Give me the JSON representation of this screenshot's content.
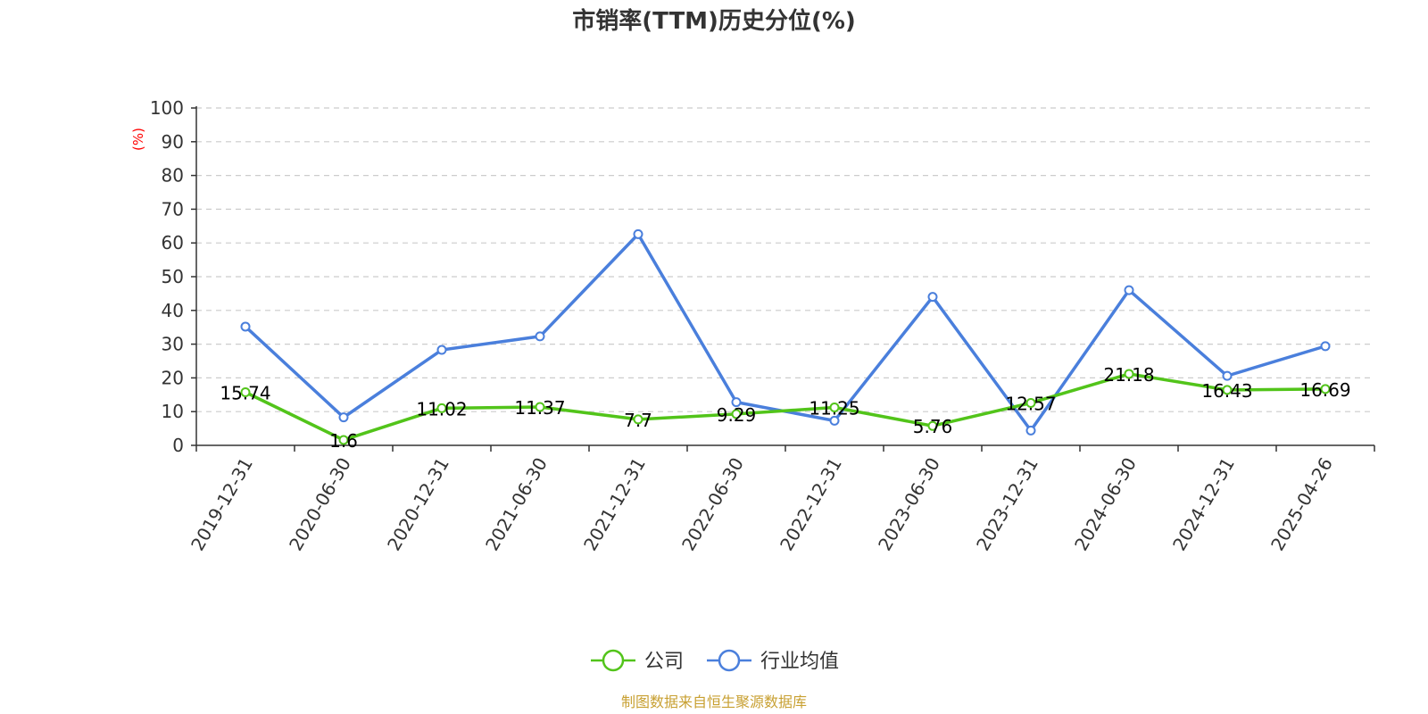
{
  "colors": {
    "company": "#52c41a",
    "industry": "#4a7fdc",
    "grid": "#cccccc",
    "axis": "#333333",
    "unit": "#ff0000",
    "source": "#c8a032"
  },
  "source_note": "制图数据来自恒生聚源数据库",
  "chart_data": {
    "type": "line",
    "title": "市销率(TTM)历史分位(%)",
    "ylabel": "(%)",
    "xlabel": "",
    "ylim": [
      0,
      100
    ],
    "yticks": [
      0,
      10,
      20,
      30,
      40,
      50,
      60,
      70,
      80,
      90,
      100
    ],
    "grid": true,
    "legend_position": "bottom-center",
    "categories": [
      "2019-12-31",
      "2020-06-30",
      "2020-12-31",
      "2021-06-30",
      "2021-12-31",
      "2022-06-30",
      "2022-12-31",
      "2023-06-30",
      "2023-12-31",
      "2024-06-30",
      "2024-12-31",
      "2025-04-26"
    ],
    "series": [
      {
        "name": "公司",
        "color": "#52c41a",
        "show_labels": true,
        "values": [
          15.74,
          1.6,
          11.02,
          11.37,
          7.7,
          9.29,
          11.25,
          5.76,
          12.57,
          21.18,
          16.43,
          16.69
        ]
      },
      {
        "name": "行业均值",
        "color": "#4a7fdc",
        "show_labels": false,
        "values": [
          35.2,
          8.3,
          28.3,
          32.3,
          62.6,
          12.8,
          7.3,
          44.0,
          4.4,
          46.0,
          20.6,
          29.4
        ]
      }
    ]
  }
}
